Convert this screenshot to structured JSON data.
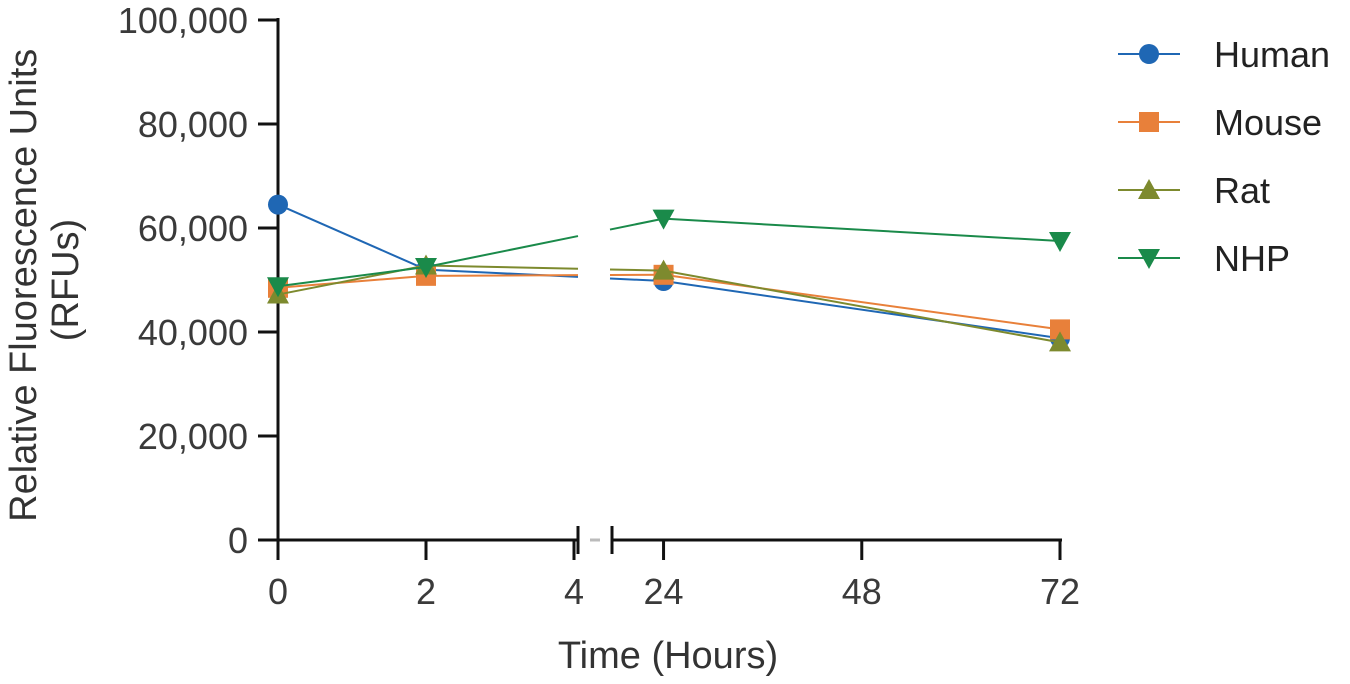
{
  "chart_data": {
    "type": "line",
    "xlabel": "Time (Hours)",
    "ylabel": [
      "Relative Fluorescence Units",
      "(RFUs)"
    ],
    "ylim": [
      0,
      100000
    ],
    "yticks": [
      0,
      20000,
      40000,
      60000,
      80000,
      100000
    ],
    "ytick_labels": [
      "0",
      "20,000",
      "40,000",
      "60,000",
      "80,000",
      "100,000"
    ],
    "x_segments": [
      {
        "range": [
          0,
          4
        ],
        "ticks": [
          0,
          2,
          4
        ],
        "tick_labels": [
          "0",
          "2",
          "4"
        ]
      },
      {
        "range": [
          18,
          72
        ],
        "ticks": [
          24,
          48,
          72
        ],
        "tick_labels": [
          "24",
          "48",
          "72"
        ]
      }
    ],
    "axis_break": true,
    "grid": false,
    "legend_position": "right",
    "series": [
      {
        "name": "Human",
        "color": "#1f67b4",
        "marker": "circle",
        "points": [
          [
            0,
            64500
          ],
          [
            2,
            52000
          ],
          [
            24,
            49800
          ],
          [
            72,
            38800
          ]
        ]
      },
      {
        "name": "Mouse",
        "color": "#e8803a",
        "marker": "square",
        "points": [
          [
            0,
            48500
          ],
          [
            2,
            50800
          ],
          [
            24,
            51000
          ],
          [
            72,
            40500
          ]
        ]
      },
      {
        "name": "Rat",
        "color": "#7d8a2e",
        "marker": "triangle-up",
        "points": [
          [
            0,
            47200
          ],
          [
            2,
            52800
          ],
          [
            24,
            51800
          ],
          [
            72,
            38000
          ]
        ]
      },
      {
        "name": "NHP",
        "color": "#1a8a4a",
        "marker": "triangle-down",
        "points": [
          [
            0,
            48800
          ],
          [
            2,
            52500
          ],
          [
            24,
            61800
          ],
          [
            72,
            57500
          ]
        ]
      }
    ]
  }
}
